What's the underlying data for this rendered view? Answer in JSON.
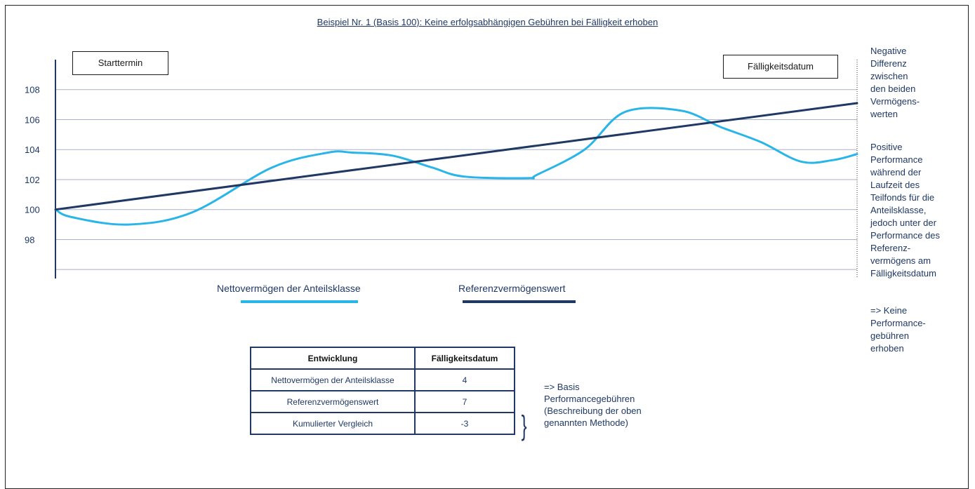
{
  "title": "Beispiel Nr. 1 (Basis 100): Keine erfolgsabhängigen Gebühren bei Fälligkeit erhoben",
  "labels": {
    "start": "Starttermin",
    "maturity": "Fälligkeitsdatum"
  },
  "side_notes": {
    "negative": [
      "Negative",
      "Differenz",
      "zwischen",
      "den beiden",
      "Vermögens-",
      "werten"
    ],
    "positive": [
      "Positive",
      "Performance",
      "während der",
      "Laufzeit des",
      "Teilfonds für die",
      "Anteilsklasse,",
      "jedoch unter der",
      "Performance des",
      "Referenz-",
      "vermögens am",
      "Fälligkeitsdatum"
    ],
    "conclusion": [
      "=> Keine",
      "Performance-",
      "gebühren",
      "erhoben"
    ]
  },
  "chart_data": {
    "type": "line",
    "title": "Beispiel Nr. 1 (Basis 100): Keine erfolgsabhängigen Gebühren bei Fälligkeit erhoben",
    "y_ticks": [
      "108",
      "106",
      "104",
      "102",
      "100",
      "98"
    ],
    "y_tick_values": [
      108,
      106,
      104,
      102,
      100,
      98
    ],
    "gridline_values": [
      108,
      106,
      104,
      102,
      100,
      98,
      96
    ],
    "ylim": [
      95.4,
      110
    ],
    "xlim": [
      0,
      100
    ],
    "grid": true,
    "legend_position": "bottom",
    "series": [
      {
        "name": "Nettovermögen der Anteilsklasse",
        "color": "#29b5e8",
        "smooth": true,
        "x": [
          0,
          2,
          9,
          17,
          27,
          34,
          37,
          42,
          47,
          51,
          59,
          60,
          66,
          71,
          78,
          83,
          88,
          93,
          97,
          100
        ],
        "y": [
          100,
          99.5,
          99,
          99.8,
          102.8,
          103.8,
          103.8,
          103.6,
          102.8,
          102.2,
          102.1,
          102.3,
          104,
          106.5,
          106.6,
          105.5,
          104.5,
          103.2,
          103.3,
          103.7
        ]
      },
      {
        "name": "Referenzvermögenswert",
        "color": "#1f3864",
        "smooth": false,
        "x": [
          0,
          100
        ],
        "y": [
          100,
          107.1
        ]
      }
    ]
  },
  "table": {
    "headers": [
      "Entwicklung",
      "Fälligkeitsdatum"
    ],
    "rows": [
      [
        "Nettovermögen der Anteilsklasse",
        "4"
      ],
      [
        "Referenzvermögenswert",
        "7"
      ],
      [
        "Kumulierter Vergleich",
        "-3"
      ]
    ]
  },
  "table_note": [
    "=> Basis",
    "Performancegebühren",
    "(Beschreibung der oben",
    "genannten Methode)"
  ],
  "brace_glyph": "}"
}
